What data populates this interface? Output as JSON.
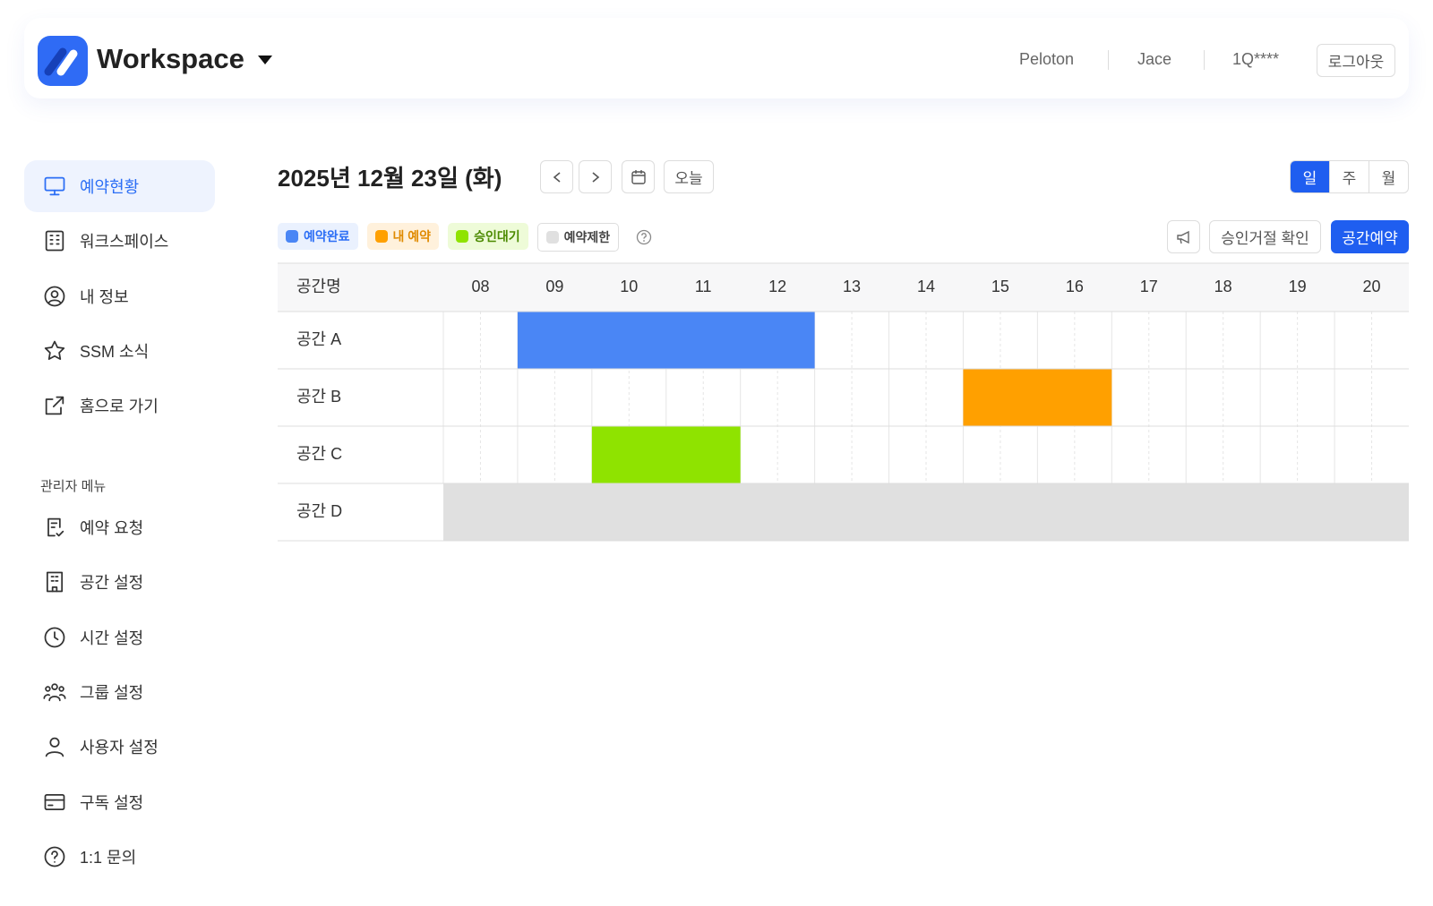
{
  "header": {
    "brand": "Workspace",
    "org": "Peloton",
    "user": "Jace",
    "user_id": "1Q****",
    "logout": "로그아웃"
  },
  "sidebar": {
    "menu": [
      "예약현황",
      "워크스페이스",
      "내 정보",
      "SSM 소식",
      "홈으로 가기"
    ],
    "admin_title": "관리자 메뉴",
    "admin_menu": [
      "예약 요청",
      "공간 설정",
      "시간 설정",
      "그룹 설정",
      "사용자 설정",
      "구독 설정",
      "1:1 문의"
    ]
  },
  "calendar": {
    "date": "2025년 12월 23일 (화)",
    "today": "오늘",
    "views": [
      "일",
      "주",
      "월"
    ],
    "legend": [
      {
        "label": "예약완료",
        "color": "#4a86f5"
      },
      {
        "label": "내 예약",
        "color": "#ffa000"
      },
      {
        "label": "승인대기",
        "color": "#8fe300"
      },
      {
        "label": "예약제한",
        "color": "#e0e0e0"
      }
    ],
    "reject_check": "승인거절 확인",
    "reserve": "공간예약",
    "column_header": "공간명",
    "hours": [
      {
        "value": 8,
        "label": "08"
      },
      {
        "value": 9,
        "label": "09"
      },
      10,
      11,
      12,
      13,
      14,
      15,
      16,
      17,
      18,
      19,
      20
    ],
    "rows": [
      {
        "name": "공간 A",
        "bookings": [
          {
            "start": 9,
            "end": 13,
            "color": "#4a86f5"
          }
        ]
      },
      {
        "name": "공간 B",
        "bookings": [
          {
            "start": 15,
            "end": 17,
            "color": "#ffa000"
          }
        ]
      },
      {
        "name": "공간 C",
        "bookings": [
          {
            "start": 10,
            "end": 12,
            "color": "#8fe300"
          }
        ]
      },
      {
        "name": "공간 D",
        "bookings": [
          {
            "start": 8,
            "end": 21,
            "color": "#e0e0e0"
          }
        ]
      }
    ]
  }
}
